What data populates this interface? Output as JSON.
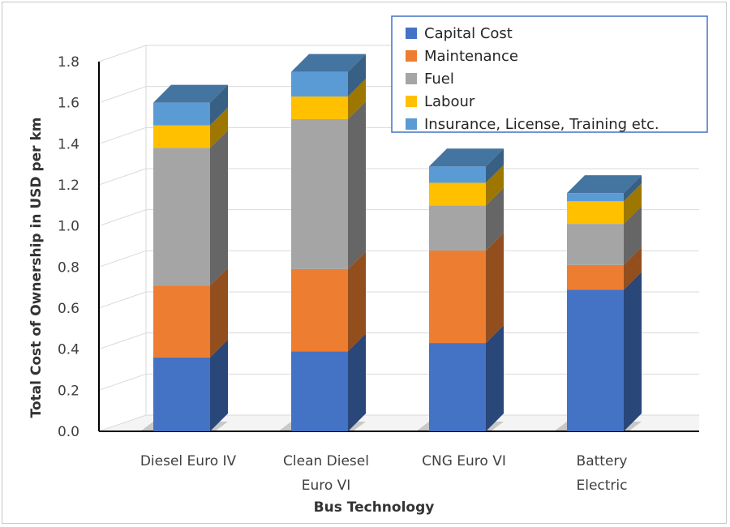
{
  "chart_data": {
    "type": "bar",
    "stacked": true,
    "three_d": true,
    "categories": [
      [
        "Diesel Euro IV"
      ],
      [
        "Clean Diesel",
        "Euro VI"
      ],
      [
        "CNG Euro VI"
      ],
      [
        "Battery",
        "Electric"
      ]
    ],
    "series": [
      {
        "name": "Capital Cost",
        "color": "#4472C4",
        "values": [
          0.36,
          0.39,
          0.43,
          0.69
        ]
      },
      {
        "name": "Maintenance",
        "color": "#ED7D31",
        "values": [
          0.35,
          0.4,
          0.45,
          0.12
        ]
      },
      {
        "name": "Fuel",
        "color": "#A5A5A5",
        "values": [
          0.67,
          0.73,
          0.22,
          0.2
        ]
      },
      {
        "name": "Labour",
        "color": "#FFC000",
        "values": [
          0.11,
          0.11,
          0.11,
          0.11
        ]
      },
      {
        "name": "Insurance, License, Training etc.",
        "color": "#5B9BD5",
        "values": [
          0.11,
          0.12,
          0.08,
          0.04
        ]
      }
    ],
    "xlabel": "Bus Technology",
    "ylabel": "Total Cost of Ownership in USD per km",
    "ylim": [
      0,
      1.8
    ],
    "yticks": [
      "0.0",
      "0.2",
      "0.4",
      "0.6",
      "0.8",
      "1.0",
      "1.2",
      "1.4",
      "1.6",
      "1.8"
    ],
    "grid": true,
    "legend_position": "top-right"
  }
}
